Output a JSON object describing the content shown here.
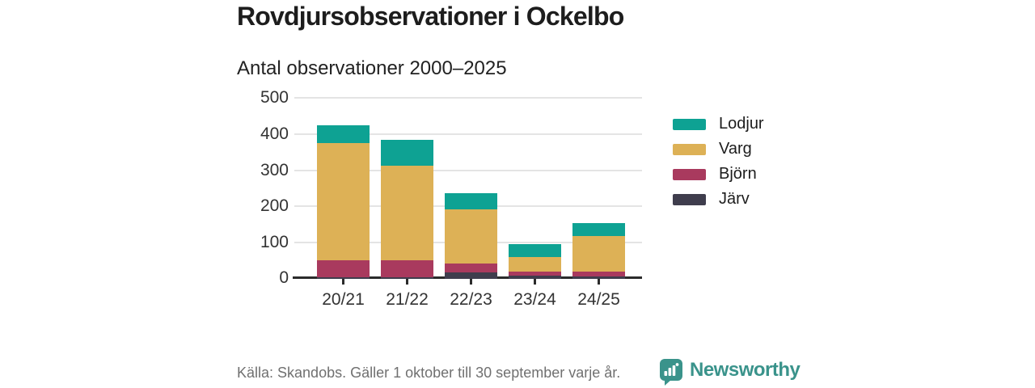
{
  "header": {
    "title": "Rovdjursobservationer i Ockelbo",
    "subtitle": "Antal observationer 2000–2025"
  },
  "chart_data": {
    "type": "bar",
    "stacked": true,
    "title": "Rovdjursobservationer i Ockelbo",
    "subtitle": "Antal observationer 2000–2025",
    "categories": [
      "20/21",
      "21/22",
      "22/23",
      "23/24",
      "24/25"
    ],
    "series": [
      {
        "name": "Järv",
        "color": "#3f3d4d",
        "values": [
          5,
          5,
          18,
          8,
          7
        ]
      },
      {
        "name": "Björn",
        "color": "#a93a5e",
        "values": [
          47,
          47,
          24,
          12,
          13
        ]
      },
      {
        "name": "Varg",
        "color": "#ddb156",
        "values": [
          323,
          261,
          150,
          40,
          98
        ]
      },
      {
        "name": "Lodjur",
        "color": "#0ea293",
        "values": [
          50,
          72,
          45,
          36,
          35
        ]
      }
    ],
    "totals": [
      425,
      385,
      237,
      96,
      153
    ],
    "legend_order": [
      "Lodjur",
      "Varg",
      "Björn",
      "Järv"
    ],
    "legend_position": "right",
    "grid": true,
    "xlabel": "",
    "ylabel": "",
    "ylim": [
      0,
      500
    ],
    "yticks": [
      0,
      100,
      200,
      300,
      400,
      500
    ]
  },
  "footer": {
    "source": "Källa: Skandobs. Gäller 1 oktober till 30 september varje år.",
    "brand": "Newsworthy"
  },
  "colors": {
    "accent_teal": "#0ea293",
    "gold": "#ddb156",
    "maroon": "#a93a5e",
    "dark_slate": "#3f3d4d",
    "brand_teal": "#3a938b",
    "gridline": "#e4e4e4",
    "axis": "#2b2b2b",
    "text_primary": "#1d1d1d",
    "text_muted": "#707070",
    "background": "#ffffff"
  }
}
